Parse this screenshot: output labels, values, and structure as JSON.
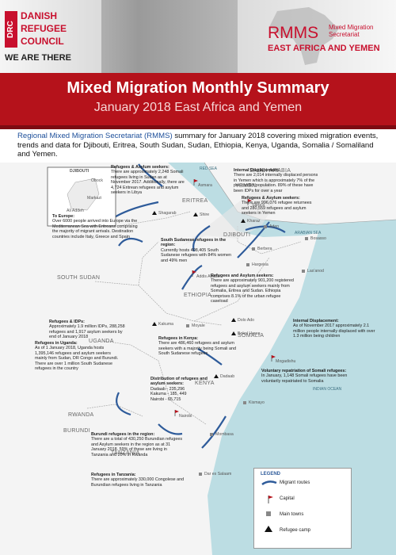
{
  "header": {
    "logo": "DRC",
    "org_name": [
      "DANISH",
      "REFUGEE",
      "COUNCIL"
    ],
    "tagline": "WE ARE THERE",
    "rmms": "RMMS",
    "rmms_full": [
      "Mixed Migration",
      "Secretariat"
    ],
    "region": "EAST AFRICA AND YEMEN"
  },
  "banner": {
    "title": "Mixed Migration Monthly Summary",
    "subtitle": "January 2018 East Africa and Yemen"
  },
  "intro": {
    "lead": "Regional Mixed Migration Secretariat (RMMS)",
    "text": " summary for January 2018 covering mixed migration events, trends and data for Djibouti, Eritrea, South Sudan, Sudan, Ethiopia, Kenya, Uganda, Somalia / Somaliland and Yemen."
  },
  "map": {
    "countries": [
      "SAUDI ARABIA",
      "YEMEN",
      "ERITREA",
      "DJIBOUTI",
      "SOUTH SUDAN",
      "ETHIOPIA",
      "SOMALIA",
      "UGANDA",
      "KENYA",
      "RWANDA",
      "BURUNDI",
      "TANZANIA"
    ],
    "seas": [
      "RED SEA",
      "ARABIAN SEA",
      "INDIAN OCEAN"
    ],
    "towns": [
      "Asmara",
      "Shire",
      "Shagarab",
      "Sana'a",
      "Kharaz",
      "Aden",
      "Berbera",
      "Hargeisa",
      "Bosasso",
      "Las'anod",
      "Addis Ababa",
      "Dolo Ado",
      "Kakuma",
      "Moyale",
      "Bokol Hareo",
      "Dadaab",
      "Mogadishu",
      "Nairobi",
      "Kismayo",
      "Mombasa",
      "Dar es Salaam"
    ],
    "inset": {
      "title": "DJIBOUTI",
      "towns": [
        "Obock",
        "Markazi",
        "Ali Addeh"
      ]
    },
    "callouts": [
      {
        "title": "Refugees & Asylum seekers:",
        "text": "There are approximately 2,248 Somali refugees living in Sudan as at November 2017. Additionally, there are 4,724 Eritrean refugees and asylum seekers in Libya"
      },
      {
        "title": "Internal Displacement:",
        "text": "There are 2,014 internally displaced persons in Yemen which is approximately 7% of the pre-conflict population. 89% of these have been IDPs for over a year"
      },
      {
        "title": "Refugees & Asylum seekers:",
        "text": "There are 996,076 refugee returnees and 280,559 refugees and asylum seekers in Yemen"
      },
      {
        "title": "To Europe:",
        "text": "Over 6000 people arrived into Europe via the Mediterranean Sea with Eritreans comprising the majority of migrant arrivals. Destination countries include Italy, Greece and Spain"
      },
      {
        "title": "South Sudanese refugees in the region:",
        "text": "Currently hosts 408,405 South Sudanese refugees with 84% women and 49% men"
      },
      {
        "title": "Refugees and Asylum seekers:",
        "text": "There are approximately 901,200 registered refugees and asylum seekers mainly from Somalia, Eritrea and Sudan. Ethiopia comprises 8.1% of the urban refugee caseload"
      },
      {
        "title": "Refugees & IDPs:",
        "text": "Approximately 1.9 million IDPs, 288,258 refugees and 1,917 asylum seekers by end of January 2018"
      },
      {
        "title": "Internal Displacement:",
        "text": "As of November 2017 approximately 2.1 million people internally displaced with over 1.3 million being children"
      },
      {
        "title": "Refugees in Kenya:",
        "text": "There are 486,460 refugees and asylum seekers with a majority being Somali and South Sudanese refugees"
      },
      {
        "title": "Refugees in Uganda:",
        "text": "As of 1 January 2018, Uganda hosts 1,395,146 refugees and asylum seekers mainly from Sudan, DR Congo and Burundi. There are over 1 million South Sudanese refugees in the country"
      },
      {
        "title": "Voluntary repatriation of Somali refugees:",
        "text": "In January, 1,148 Somali refugees have been voluntarily repatriated to Somalia"
      },
      {
        "title": "Distribution of refugees and asylum seekers:",
        "text": [
          "Dadaab - 235,296",
          "Kakuma - 185, 449",
          "Nairobi - 65,715"
        ]
      },
      {
        "title": "Burundi refugees in the region:",
        "text": "There are a total of 430,250 Burundian refugees and Asylum seekers in the region as at 31 January 2018. 59% of these are living in Tanzania and 20% in Rwanda"
      },
      {
        "title": "Refugees in Tanzania:",
        "text": "There are approximately 330,000 Congolese and Burundian refugees living in Tanzania"
      }
    ],
    "legend": {
      "title": "LEGEND",
      "items": [
        "Migrant routes",
        "Capital",
        "Main towns",
        "Refugee camp"
      ]
    }
  }
}
